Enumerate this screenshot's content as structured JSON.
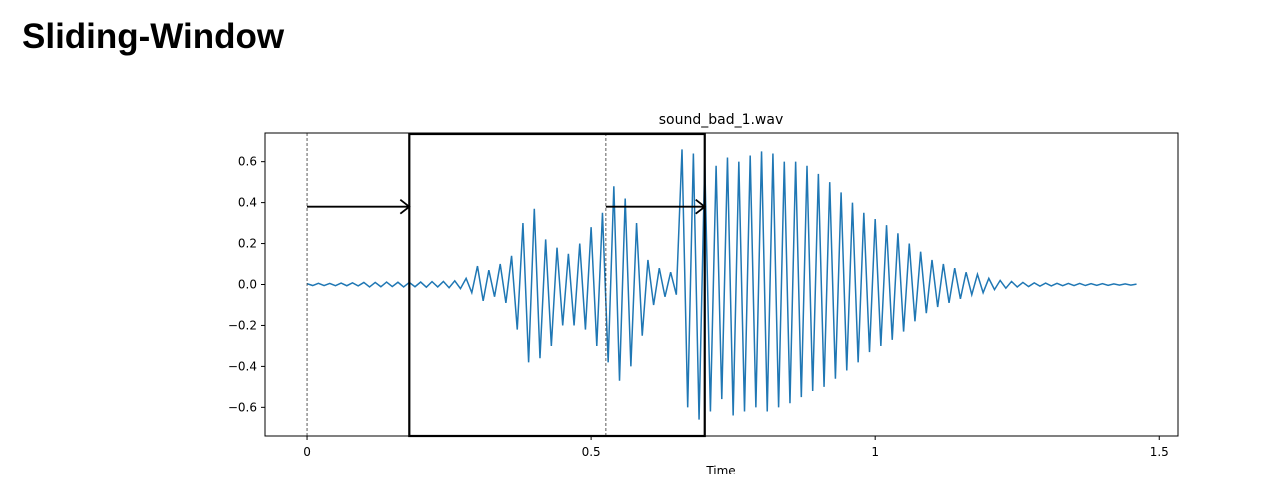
{
  "heading": "Sliding-Window",
  "chart_data": {
    "type": "line",
    "title": "sound_bad_1.wav",
    "xlabel": "Time",
    "xlim": [
      -0.074,
      1.533
    ],
    "ylim": [
      -0.74,
      0.74
    ],
    "xticks": [
      0,
      0.5,
      1,
      1.5
    ],
    "yticks": [
      {
        "value": -0.6,
        "label": "−0.6"
      },
      {
        "value": -0.4,
        "label": "−0.4"
      },
      {
        "value": -0.2,
        "label": "−0.2"
      },
      {
        "value": 0,
        "label": "0.0"
      },
      0.2,
      0.4,
      0.6
    ],
    "windows": [
      {
        "start": 0,
        "end": 0.526,
        "style": "dashed"
      },
      {
        "start": 0.18,
        "end": 0.7,
        "style": "solid"
      }
    ],
    "shift_arrows_y": 0.38,
    "series": [
      {
        "color": "#1f77b4",
        "x": [
          0,
          0.01,
          0.02,
          0.03,
          0.04,
          0.05,
          0.06,
          0.07,
          0.08,
          0.09,
          0.1,
          0.11,
          0.12,
          0.13,
          0.14,
          0.15,
          0.16,
          0.17,
          0.18,
          0.19,
          0.2,
          0.21,
          0.22,
          0.23,
          0.24,
          0.25,
          0.26,
          0.27,
          0.28,
          0.29,
          0.3,
          0.31,
          0.32,
          0.33,
          0.34,
          0.35,
          0.36,
          0.37,
          0.38,
          0.39,
          0.4,
          0.41,
          0.42,
          0.43,
          0.44,
          0.45,
          0.46,
          0.47,
          0.48,
          0.49,
          0.5,
          0.51,
          0.52,
          0.53,
          0.54,
          0.55,
          0.56,
          0.57,
          0.58,
          0.59,
          0.6,
          0.61,
          0.62,
          0.63,
          0.64,
          0.65,
          0.66,
          0.67,
          0.68,
          0.69,
          0.7,
          0.71,
          0.72,
          0.73,
          0.74,
          0.75,
          0.76,
          0.77,
          0.78,
          0.79,
          0.8,
          0.81,
          0.82,
          0.83,
          0.84,
          0.85,
          0.86,
          0.87,
          0.88,
          0.89,
          0.9,
          0.91,
          0.92,
          0.93,
          0.94,
          0.95,
          0.96,
          0.97,
          0.98,
          0.99,
          1,
          1.01,
          1.02,
          1.03,
          1.04,
          1.05,
          1.06,
          1.07,
          1.08,
          1.09,
          1.1,
          1.11,
          1.12,
          1.13,
          1.14,
          1.15,
          1.16,
          1.17,
          1.18,
          1.19,
          1.2,
          1.21,
          1.22,
          1.23,
          1.24,
          1.25,
          1.26,
          1.27,
          1.28,
          1.29,
          1.3,
          1.31,
          1.32,
          1.33,
          1.34,
          1.35,
          1.36,
          1.37,
          1.38,
          1.39,
          1.4,
          1.41,
          1.42,
          1.43,
          1.44,
          1.45,
          1.46
        ],
        "values": [
          0.004,
          -0.005,
          0.006,
          -0.005,
          0.005,
          -0.006,
          0.007,
          -0.006,
          0.008,
          -0.007,
          0.01,
          -0.012,
          0.01,
          -0.011,
          0.012,
          -0.01,
          0.011,
          -0.012,
          0.01,
          -0.011,
          0.012,
          -0.013,
          0.014,
          -0.012,
          0.015,
          -0.016,
          0.018,
          -0.02,
          0.03,
          -0.04,
          0.09,
          -0.08,
          0.07,
          -0.06,
          0.1,
          -0.09,
          0.14,
          -0.22,
          0.3,
          -0.38,
          0.37,
          -0.36,
          0.22,
          -0.3,
          0.18,
          -0.2,
          0.15,
          -0.2,
          0.2,
          -0.22,
          0.28,
          -0.3,
          0.35,
          -0.38,
          0.48,
          -0.47,
          0.42,
          -0.4,
          0.3,
          -0.25,
          0.12,
          -0.1,
          0.08,
          -0.06,
          0.06,
          -0.05,
          0.66,
          -0.6,
          0.64,
          -0.66,
          0.6,
          -0.62,
          0.58,
          -0.56,
          0.62,
          -0.64,
          0.6,
          -0.62,
          0.63,
          -0.6,
          0.65,
          -0.62,
          0.64,
          -0.6,
          0.6,
          -0.58,
          0.6,
          -0.55,
          0.58,
          -0.52,
          0.54,
          -0.5,
          0.5,
          -0.46,
          0.45,
          -0.42,
          0.4,
          -0.38,
          0.35,
          -0.33,
          0.32,
          -0.3,
          0.29,
          -0.27,
          0.25,
          -0.23,
          0.2,
          -0.18,
          0.16,
          -0.14,
          0.12,
          -0.11,
          0.1,
          -0.09,
          0.08,
          -0.07,
          0.06,
          -0.05,
          0.05,
          -0.04,
          0.03,
          -0.025,
          0.02,
          -0.018,
          0.015,
          -0.012,
          0.01,
          -0.01,
          0.008,
          -0.008,
          0.007,
          -0.007,
          0.006,
          -0.006,
          0.005,
          -0.005,
          0.005,
          -0.005,
          0.004,
          -0.004,
          0.004,
          -0.004,
          0.003,
          -0.003,
          0.003,
          -0.003,
          0.002
        ]
      }
    ]
  }
}
